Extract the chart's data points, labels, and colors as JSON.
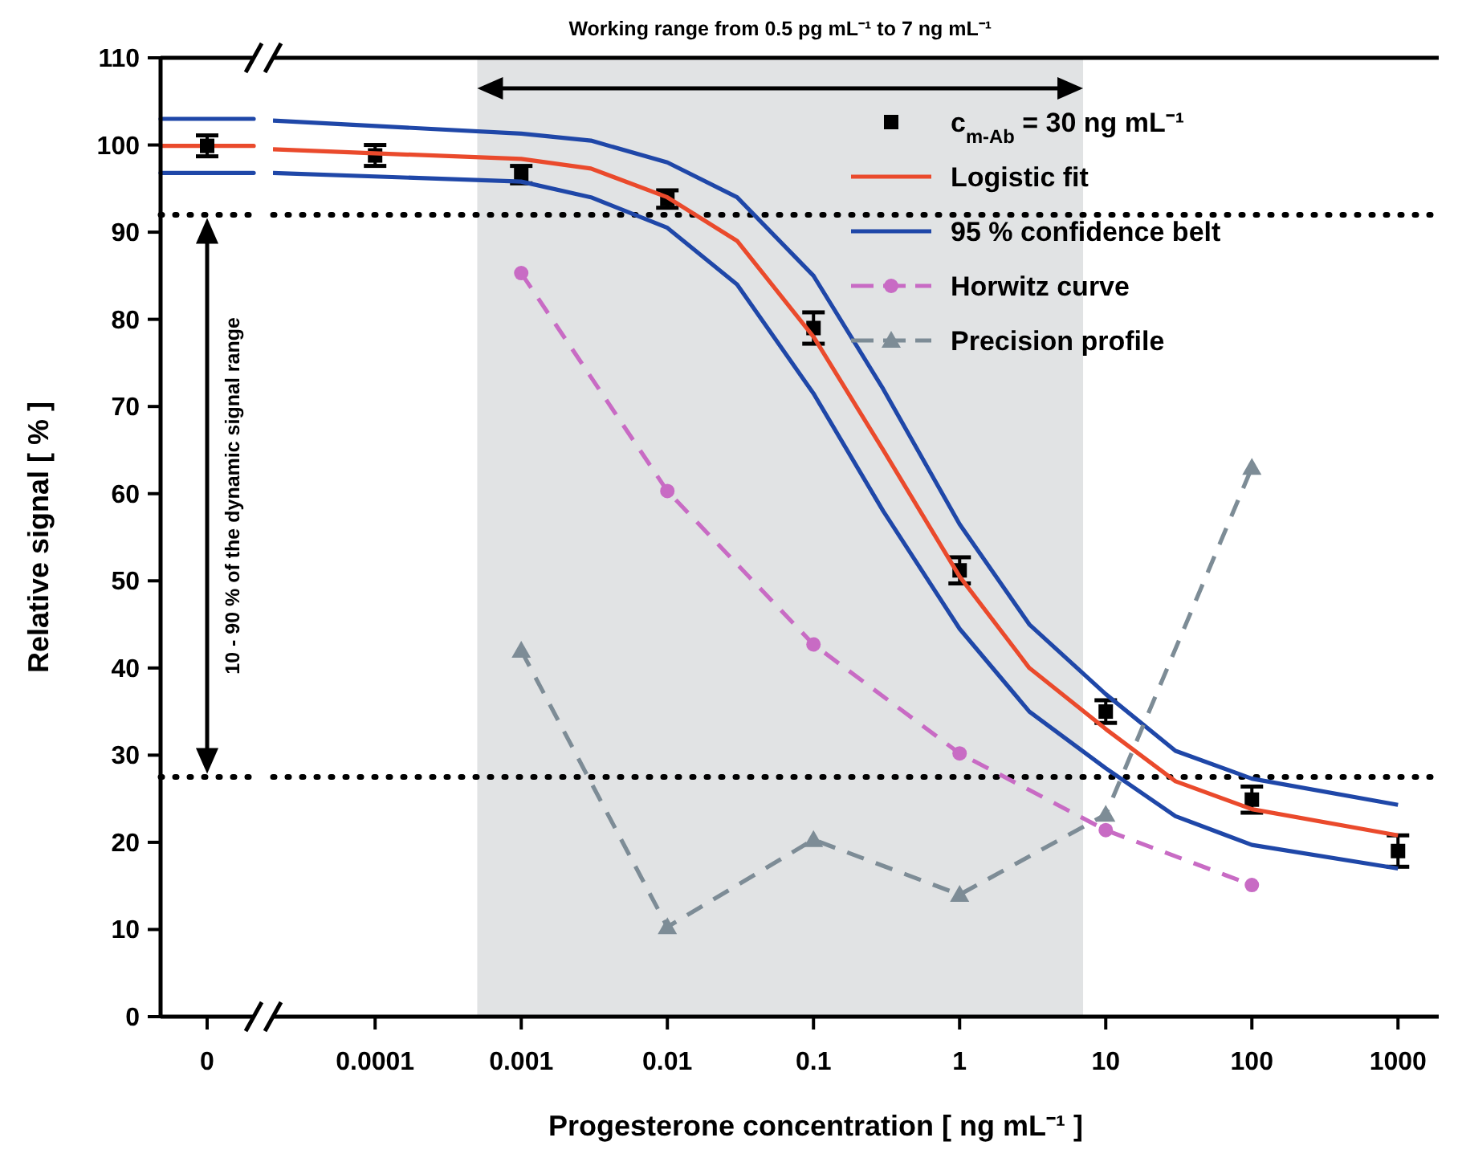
{
  "chart_data": [
    {
      "type": "line",
      "ylabel": "Relative signal [ % ]",
      "categories": [
        "0"
      ],
      "ylim": [
        0,
        110
      ],
      "yticks": [
        0,
        10,
        20,
        30,
        40,
        50,
        60,
        70,
        80,
        90,
        100,
        110
      ],
      "ref_lines": [
        {
          "axis": "y",
          "value": 92,
          "line_style": "dotted",
          "color": "#000000"
        },
        {
          "axis": "y",
          "value": 27.5,
          "line_style": "dotted",
          "color": "#000000"
        },
        {
          "axis": "y",
          "value": 103,
          "line_style": "solid",
          "color": "#1f47a8"
        },
        {
          "axis": "y",
          "value": 96.8,
          "line_style": "solid",
          "color": "#1f47a8"
        },
        {
          "axis": "y",
          "value": 99.9,
          "line_style": "solid",
          "color": "#ea4a2c"
        }
      ],
      "annotations": [
        "10 - 90 % of the dynamic signal range"
      ],
      "series": [
        {
          "type": "scatter",
          "marker": "square",
          "color": "#000000",
          "values": [
            99.9
          ],
          "errors": [
            1.2
          ]
        }
      ]
    },
    {
      "type": "line",
      "xlabel": "Progesterone concentration [ ng mL⁻¹ ]",
      "xlim": [
        2e-05,
        1900
      ],
      "ylim": [
        0,
        110
      ],
      "xticks": [
        0.0001,
        0.001,
        0.01,
        0.1,
        1,
        10,
        100,
        1000
      ],
      "tick_labels": "x",
      "log": "x",
      "legend": "top right",
      "bands": [
        {
          "axis": "x",
          "from": 0.0005,
          "to": 7,
          "label": "Working range from 0.5 pg mL⁻¹ to 7 ng mL⁻¹",
          "color": "#e1e3e4"
        }
      ],
      "ref_lines": [
        {
          "axis": "y",
          "value": 92,
          "line_style": "dotted",
          "color": "#000000"
        },
        {
          "axis": "y",
          "value": 27.5,
          "line_style": "dotted",
          "color": "#000000"
        }
      ],
      "series": [
        {
          "name": "c$_{m-Ab}$ = 30 ng mL⁻¹",
          "type": "scatter",
          "marker": "square",
          "color": "#000000",
          "x": [
            0.0001,
            0.001,
            0.01,
            0.1,
            1,
            10,
            100,
            1000
          ],
          "values": [
            98.8,
            96.6,
            93.8,
            79,
            51.2,
            35,
            24.9,
            19
          ],
          "errors": [
            1.2,
            1,
            1,
            1.8,
            1.5,
            1.3,
            1.5,
            1.8
          ]
        },
        {
          "name": "Logistic fit",
          "type": "line",
          "marker": "none",
          "line_style": "solid",
          "color": "#ea4a2c",
          "x": [
            2e-05,
            0.001,
            0.003,
            0.01,
            0.03,
            0.1,
            0.3,
            1,
            3,
            10,
            30,
            100,
            1000
          ],
          "values": [
            99.5,
            98.4,
            97.3,
            94,
            89,
            78,
            65,
            50.5,
            40,
            33,
            27,
            23.8,
            20.8
          ]
        },
        {
          "name": "95 % confidence belt",
          "type": "line",
          "marker": "none",
          "line_style": "solid",
          "color": "#1f47a8",
          "x": [
            2e-05,
            0.001,
            0.003,
            0.01,
            0.03,
            0.1,
            0.3,
            1,
            3,
            10,
            30,
            100,
            1000
          ],
          "values": [
            102.8,
            101.3,
            100.5,
            98,
            94,
            85,
            72,
            56.5,
            45,
            37,
            30.5,
            27.3,
            24.3
          ]
        },
        {
          "type": "line",
          "marker": "none",
          "line_style": "solid",
          "color": "#1f47a8",
          "x": [
            2e-05,
            0.001,
            0.003,
            0.01,
            0.03,
            0.1,
            0.3,
            1,
            3,
            10,
            30,
            100,
            1000
          ],
          "values": [
            96.8,
            95.8,
            94,
            90.5,
            84,
            71.5,
            58,
            44.5,
            35,
            28.5,
            23,
            19.7,
            17
          ]
        },
        {
          "name": "Horwitz curve",
          "type": "line",
          "marker": "circle",
          "line_style": "dashed",
          "color": "#c86bc4",
          "x": [
            0.001,
            0.01,
            0.1,
            1,
            10,
            100
          ],
          "values": [
            85.3,
            60.3,
            42.7,
            30.2,
            21.4,
            15.1
          ]
        },
        {
          "name": "Precision profile",
          "type": "line",
          "marker": "triangle",
          "line_style": "dashed",
          "color": "#7d8c96",
          "x": [
            0.001,
            0.01,
            0.1,
            1,
            10,
            100
          ],
          "values": [
            42,
            10.3,
            20.3,
            14,
            23.2,
            63
          ]
        }
      ]
    }
  ]
}
